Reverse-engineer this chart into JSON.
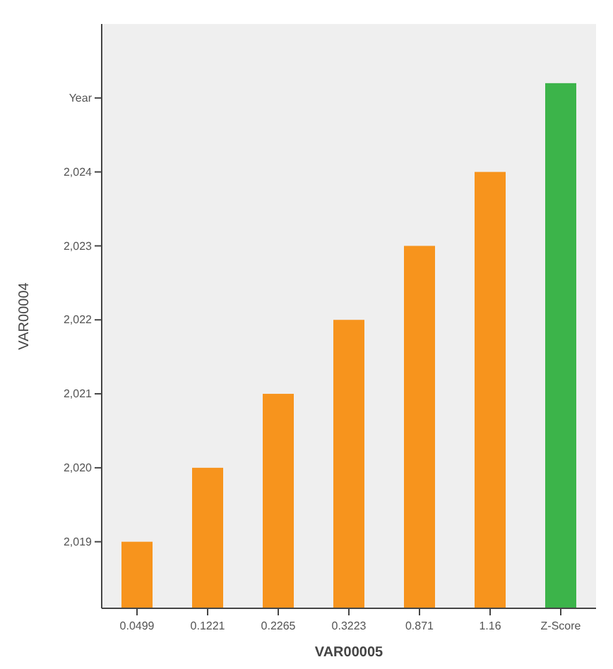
{
  "chart_data": {
    "type": "bar",
    "xlabel": "VAR00005",
    "ylabel": "VAR00004",
    "categories": [
      "0.0499",
      "0.1221",
      "0.2265",
      "0.3223",
      "0.871",
      "1.16",
      "Z-Score"
    ],
    "values": [
      2019,
      2020,
      2021,
      2022,
      2023,
      2024,
      2025.2
    ],
    "colors": [
      "#f7941d",
      "#f7941d",
      "#f7941d",
      "#f7941d",
      "#f7941d",
      "#f7941d",
      "#3cb44a"
    ],
    "ylim": [
      2018.1,
      2026
    ],
    "yticks": [
      {
        "value": 2019,
        "label": "2,019"
      },
      {
        "value": 2020,
        "label": "2,020"
      },
      {
        "value": 2021,
        "label": "2,021"
      },
      {
        "value": 2022,
        "label": "2,022"
      },
      {
        "value": 2023,
        "label": "2,023"
      },
      {
        "value": 2024,
        "label": "2,024"
      },
      {
        "value": 2025,
        "label": "Year"
      }
    ],
    "grid": false
  }
}
